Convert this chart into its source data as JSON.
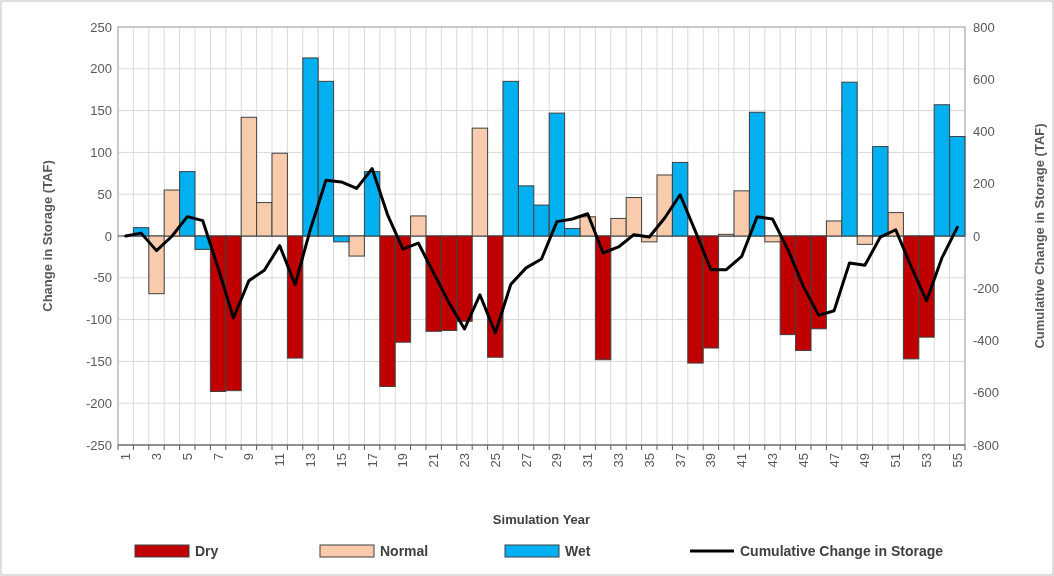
{
  "chart_data": {
    "type": "bar",
    "stacked": true,
    "xlabel": "Simulation Year",
    "ylabel": "Change in Storage (TAF)",
    "y2label": "Cumulative Change in Storage (TAF)",
    "categories": [
      "1",
      null,
      "3",
      null,
      "5",
      null,
      "7",
      null,
      "9",
      null,
      "11",
      null,
      "13",
      null,
      "15",
      null,
      "17",
      null,
      "19",
      null,
      "21",
      null,
      "23",
      null,
      "25",
      null,
      "27",
      null,
      "29",
      null,
      "31",
      null,
      "33",
      null,
      "35",
      null,
      "37",
      null,
      "39",
      null,
      "41",
      null,
      "43",
      null,
      "45",
      null,
      "47",
      null,
      "49",
      null,
      "51",
      null,
      "53",
      null,
      "55"
    ],
    "series": [
      {
        "name": "Dry",
        "color": "#c00000",
        "values": [
          null,
          null,
          null,
          null,
          null,
          null,
          -186,
          -185,
          null,
          null,
          null,
          -146,
          null,
          null,
          null,
          null,
          null,
          -180,
          -127,
          null,
          -114,
          -113,
          -102,
          null,
          -145,
          null,
          null,
          null,
          null,
          null,
          null,
          -148,
          null,
          null,
          null,
          null,
          null,
          -152,
          -134,
          null,
          null,
          null,
          null,
          -118,
          -137,
          -111,
          null,
          null,
          null,
          null,
          null,
          -147,
          -121,
          null,
          null
        ]
      },
      {
        "name": "Normal",
        "color": "#f8cbad",
        "values": [
          null,
          null,
          -69,
          55,
          null,
          null,
          null,
          null,
          142,
          40,
          99,
          null,
          null,
          null,
          null,
          -24,
          null,
          null,
          null,
          24,
          null,
          null,
          null,
          129,
          null,
          null,
          null,
          null,
          null,
          null,
          23,
          null,
          21,
          46,
          -7,
          73,
          null,
          null,
          null,
          2,
          54,
          null,
          -7,
          null,
          null,
          null,
          18,
          null,
          -10,
          null,
          28,
          null,
          null,
          null,
          null
        ]
      },
      {
        "name": "Wet",
        "color": "#00b0f0",
        "values": [
          null,
          10,
          null,
          null,
          77,
          -16,
          null,
          null,
          null,
          null,
          null,
          null,
          213,
          185,
          -7,
          null,
          77,
          null,
          null,
          null,
          null,
          null,
          null,
          null,
          null,
          185,
          60,
          37,
          147,
          9,
          null,
          null,
          null,
          null,
          null,
          null,
          88,
          null,
          null,
          null,
          null,
          148,
          null,
          null,
          null,
          null,
          null,
          184,
          null,
          107,
          null,
          null,
          null,
          157,
          119
        ]
      },
      {
        "name": "Cumulative Change in Storage",
        "type": "line",
        "axis": "y2",
        "color": "#000000",
        "values": [
          0,
          11,
          -56,
          -1,
          74,
          59,
          -122,
          -314,
          -171,
          -131,
          -37,
          -186,
          27,
          213,
          207,
          182,
          258,
          82,
          -50,
          -27,
          -142,
          -256,
          -356,
          -225,
          -371,
          -186,
          -122,
          -88,
          55,
          65,
          85,
          -65,
          -42,
          5,
          -4,
          69,
          158,
          17,
          -129,
          -129,
          -78,
          74,
          65,
          -52,
          -193,
          -304,
          -286,
          -103,
          -112,
          -4,
          24,
          -116,
          -248,
          -84,
          33
        ]
      }
    ],
    "ylim": [
      -250,
      250
    ],
    "yticks": [
      -250,
      -200,
      -150,
      -100,
      -50,
      0,
      50,
      100,
      150,
      200,
      250
    ],
    "y2lim": [
      -800,
      800
    ],
    "y2ticks": [
      -800,
      -600,
      -400,
      -200,
      0,
      200,
      400,
      600,
      800
    ],
    "grid": true,
    "legend": "bottom"
  }
}
